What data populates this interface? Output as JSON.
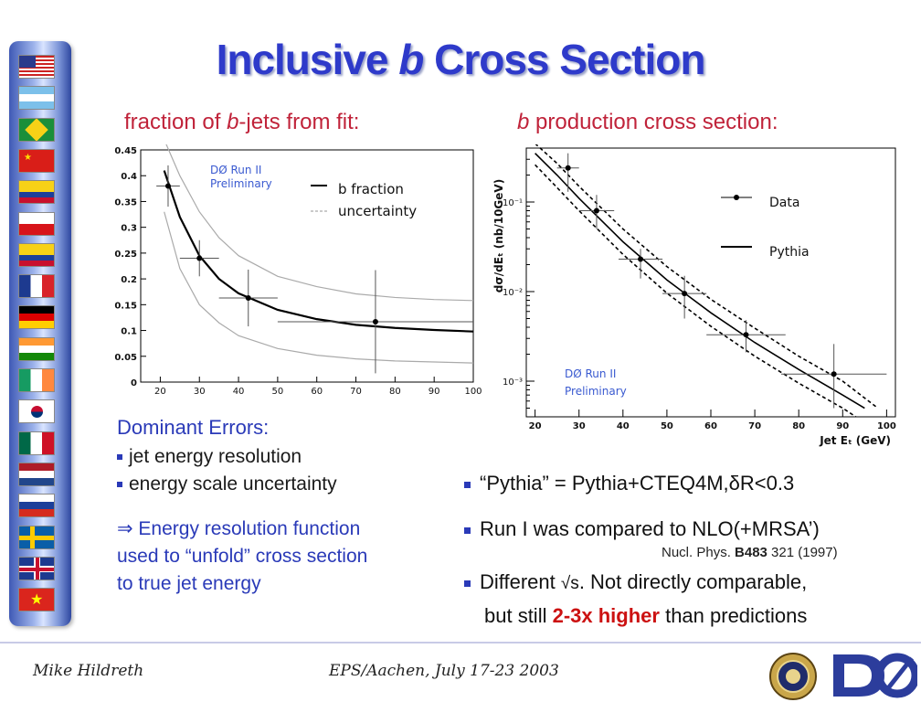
{
  "title": {
    "pre": "Inclusive ",
    "b": "b",
    "post": " Cross Section"
  },
  "left_heading": {
    "pre": "fraction of ",
    "b": "b",
    "post": "-jets from fit:"
  },
  "right_heading": {
    "b": "b",
    "post": " production cross section:"
  },
  "flags": [
    "usa-flag",
    "argentina-flag",
    "brazil-flag",
    "china-flag",
    "colombia-flag",
    "czech-flag",
    "ecuador-flag",
    "france-flag",
    "germany-flag",
    "india-flag",
    "ireland-flag",
    "korea-flag",
    "mexico-flag",
    "netherlands-flag",
    "russia-flag",
    "sweden-flag",
    "uk-flag",
    "vietnam-flag"
  ],
  "dominant_errors": {
    "heading": "Dominant Errors:",
    "items": [
      "jet energy resolution",
      "energy scale uncertainty"
    ],
    "note": "⇒ Energy resolution function used to “unfold” cross section to true jet energy"
  },
  "bullets": {
    "b1": "“Pythia” = Pythia+CTEQ4M,δR<0.3",
    "b2": "Run I was compared to NLO(+MRSA’)",
    "ref_pre": "Nucl. Phys. ",
    "ref_bold": "B483",
    "ref_post": " 321 (1997)",
    "b3_pre": "Different",
    "b3_sqrt": "√s",
    "b3_post": ". Not directly comparable,",
    "b4_pre": "but still ",
    "b4_red": "2-3x higher",
    "b4_post": " than predictions"
  },
  "footer": {
    "author": "Mike Hildreth",
    "conference": "EPS/Aachen, July 17-23 2003"
  },
  "logos": [
    "notre-dame-seal",
    "d0-logo"
  ],
  "colors": {
    "title": "#2e3aca",
    "heading_red": "#c0233a",
    "accent_blue": "#2a3ab8",
    "highlight_red": "#cc1111"
  },
  "chart_data": [
    {
      "type": "scatter",
      "title": "",
      "stamp": "DØ Run II\nPreliminary",
      "legend": [
        "b fraction",
        "uncertainty"
      ],
      "xlim": [
        15,
        100
      ],
      "ylim": [
        0,
        0.45
      ],
      "xticks": [
        20,
        30,
        40,
        50,
        60,
        70,
        80,
        90,
        100
      ],
      "yticks": [
        0,
        0.05,
        0.1,
        0.15,
        0.2,
        0.25,
        0.3,
        0.35,
        0.4,
        0.45
      ],
      "points": [
        {
          "x": 22,
          "y": 0.38,
          "xerr": 3,
          "yerr": 0.04
        },
        {
          "x": 30,
          "y": 0.24,
          "xerr": 5,
          "yerr": 0.035
        },
        {
          "x": 42.5,
          "y": 0.163,
          "xerr": 7.5,
          "yerr": 0.055
        },
        {
          "x": 75,
          "y": 0.117,
          "xerr": 25,
          "yerr": 0.1
        }
      ],
      "fit": {
        "x": [
          21,
          25,
          30,
          35,
          40,
          50,
          60,
          70,
          80,
          90,
          100
        ],
        "y": [
          0.41,
          0.32,
          0.245,
          0.2,
          0.172,
          0.14,
          0.122,
          0.111,
          0.105,
          0.101,
          0.098
        ]
      },
      "fit_upper": {
        "x": [
          21,
          25,
          30,
          35,
          40,
          50,
          60,
          70,
          80,
          90,
          100
        ],
        "y": [
          0.47,
          0.4,
          0.33,
          0.28,
          0.245,
          0.205,
          0.185,
          0.171,
          0.164,
          0.16,
          0.158
        ]
      },
      "fit_lower": {
        "x": [
          21,
          25,
          30,
          35,
          40,
          50,
          60,
          70,
          80,
          90,
          100
        ],
        "y": [
          0.33,
          0.22,
          0.15,
          0.115,
          0.09,
          0.065,
          0.052,
          0.045,
          0.041,
          0.039,
          0.037
        ]
      }
    },
    {
      "type": "scatter",
      "title": "",
      "stamp": "DØ Run II\nPreliminary",
      "ylabel": "dσ/dEₜ (nb/10GeV)",
      "xlabel": "Jet Eₜ (GeV)",
      "legend": [
        "Data",
        "Pythia"
      ],
      "log_y": true,
      "xlim": [
        18,
        102
      ],
      "ylim": [
        0.0004,
        0.4
      ],
      "xticks": [
        20,
        30,
        40,
        50,
        60,
        70,
        80,
        90,
        100
      ],
      "ytick_labels": [
        "10⁻¹",
        "10⁻²",
        "10⁻³"
      ],
      "ytick_values": [
        0.1,
        0.01,
        0.001
      ],
      "points": [
        {
          "x": 27.5,
          "y": 0.24,
          "xerr": 2.5,
          "ylo": 0.13,
          "yhi": 0.35
        },
        {
          "x": 34,
          "y": 0.08,
          "xerr": 4,
          "ylo": 0.05,
          "yhi": 0.12
        },
        {
          "x": 44,
          "y": 0.023,
          "xerr": 5,
          "ylo": 0.014,
          "yhi": 0.03
        },
        {
          "x": 54,
          "y": 0.0095,
          "xerr": 5,
          "ylo": 0.005,
          "yhi": 0.015
        },
        {
          "x": 68,
          "y": 0.0033,
          "xerr": 9,
          "ylo": 0.0021,
          "yhi": 0.0048
        },
        {
          "x": 88,
          "y": 0.0012,
          "xerr": 12,
          "ylo": 0.0005,
          "yhi": 0.0026
        }
      ],
      "pythia": {
        "x": [
          20,
          25,
          30,
          40,
          50,
          60,
          70,
          80,
          90,
          95
        ],
        "y": [
          0.35,
          0.2,
          0.11,
          0.036,
          0.0135,
          0.0058,
          0.0027,
          0.00135,
          0.0007,
          0.0005
        ]
      },
      "pythia_upper": {
        "x": [
          20,
          25,
          30,
          40,
          50,
          60,
          70,
          80,
          90,
          98
        ],
        "y": [
          0.45,
          0.27,
          0.15,
          0.05,
          0.019,
          0.0082,
          0.0039,
          0.0019,
          0.001,
          0.0005
        ]
      },
      "pythia_lower": {
        "x": [
          20,
          25,
          30,
          40,
          50,
          60,
          70,
          80,
          90,
          93
        ],
        "y": [
          0.26,
          0.145,
          0.08,
          0.026,
          0.0096,
          0.0041,
          0.0019,
          0.00095,
          0.0005,
          0.0004
        ]
      }
    }
  ]
}
